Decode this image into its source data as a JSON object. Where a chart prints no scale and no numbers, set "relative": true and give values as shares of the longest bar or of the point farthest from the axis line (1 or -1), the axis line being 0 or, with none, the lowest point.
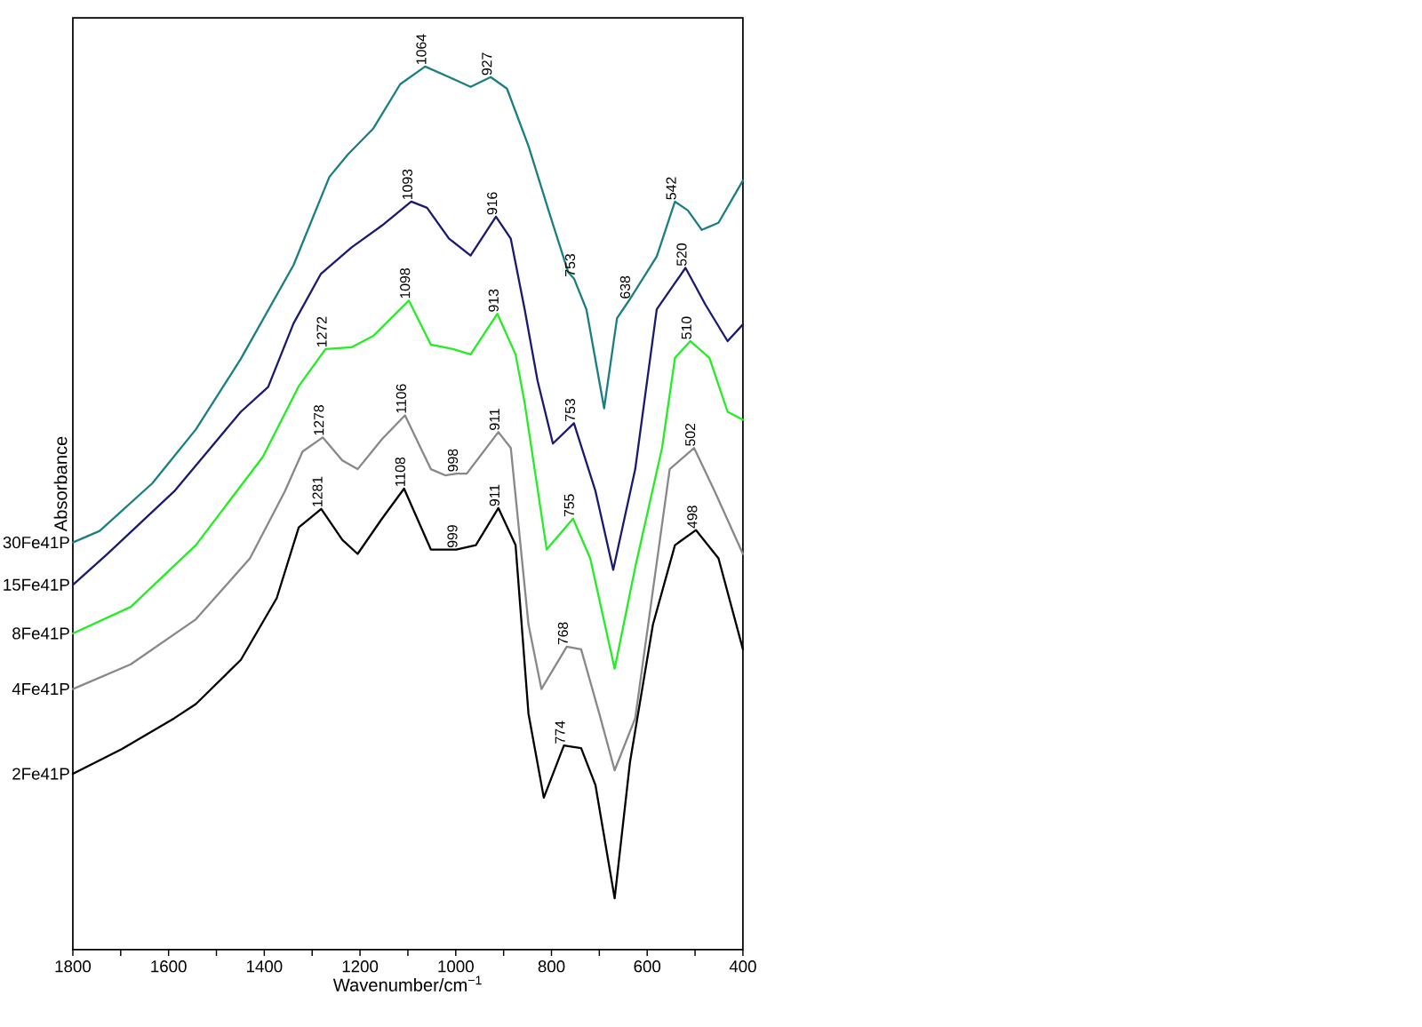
{
  "chart_data": {
    "type": "line",
    "relative": true,
    "xlabel": "Wavenumber/cm$^{−1}$",
    "ylabel": "Absorbance",
    "xlim": [
      1800,
      400
    ],
    "xticks": [
      1800,
      {
        "value": 1700,
        "label": null
      },
      1600,
      {
        "value": 1500,
        "label": null
      },
      1400,
      {
        "value": 1300,
        "label": null
      },
      1200,
      {
        "value": 1100,
        "label": null
      },
      1000,
      {
        "value": 900,
        "label": null
      },
      800,
      {
        "value": 700,
        "label": null
      },
      600,
      {
        "value": 500,
        "label": null
      },
      400
    ],
    "series": [
      {
        "name": "30Fe41P",
        "color": "#1a7f80",
        "x": [
          1800,
          1744,
          1634,
          1543,
          1449,
          1339,
          1264,
          1226,
          1172,
          1116,
          1064,
          1014,
          969,
          927,
          893,
          848,
          802,
          765,
          753,
          727,
          690,
          663,
          638,
          580,
          542,
          515,
          486,
          451,
          400
        ],
        "values": [
          0.461,
          0.474,
          0.528,
          0.589,
          0.669,
          0.775,
          0.875,
          0.9,
          0.93,
          0.98,
          1.0,
          0.988,
          0.977,
          0.988,
          0.975,
          0.91,
          0.83,
          0.767,
          0.76,
          0.725,
          0.613,
          0.715,
          0.735,
          0.785,
          0.847,
          0.837,
          0.815,
          0.823,
          0.871
        ]
      },
      {
        "name": "15Fe41P",
        "color": "#1a1a6e",
        "x": [
          1800,
          1728,
          1588,
          1449,
          1392,
          1339,
          1282,
          1218,
          1154,
          1093,
          1060,
          1014,
          969,
          916,
          885,
          856,
          829,
          797,
          753,
          708,
          671,
          625,
          580,
          520,
          478,
          432,
          400
        ],
        "values": [
          0.413,
          0.448,
          0.519,
          0.609,
          0.637,
          0.709,
          0.765,
          0.795,
          0.82,
          0.847,
          0.84,
          0.805,
          0.786,
          0.83,
          0.805,
          0.725,
          0.644,
          0.573,
          0.596,
          0.519,
          0.43,
          0.544,
          0.725,
          0.772,
          0.73,
          0.689,
          0.708
        ]
      },
      {
        "name": "8Fe41P",
        "color": "#22ee22",
        "x": [
          1800,
          1679,
          1543,
          1403,
          1328,
          1272,
          1218,
          1172,
          1098,
          1052,
          1006,
          969,
          913,
          875,
          856,
          810,
          755,
          719,
          668,
          625,
          569,
          542,
          510,
          470,
          432,
          400
        ],
        "values": [
          0.358,
          0.388,
          0.458,
          0.558,
          0.638,
          0.68,
          0.682,
          0.695,
          0.735,
          0.685,
          0.68,
          0.674,
          0.72,
          0.674,
          0.619,
          0.453,
          0.488,
          0.443,
          0.318,
          0.433,
          0.568,
          0.67,
          0.689,
          0.67,
          0.609,
          0.6
        ]
      },
      {
        "name": "4Fe41P",
        "color": "#888888",
        "x": [
          1800,
          1679,
          1543,
          1430,
          1357,
          1320,
          1278,
          1237,
          1205,
          1154,
          1106,
          1052,
          1022,
          998,
          977,
          911,
          885,
          848,
          821,
          768,
          738,
          700,
          668,
          625,
          598,
          553,
          502,
          459,
          400
        ],
        "values": [
          0.295,
          0.323,
          0.374,
          0.443,
          0.519,
          0.564,
          0.58,
          0.554,
          0.544,
          0.578,
          0.605,
          0.544,
          0.537,
          0.539,
          0.539,
          0.586,
          0.568,
          0.368,
          0.295,
          0.343,
          0.34,
          0.267,
          0.203,
          0.262,
          0.368,
          0.544,
          0.568,
          0.519,
          0.448
        ]
      },
      {
        "name": "2Fe41P",
        "color": "#000000",
        "x": [
          1800,
          1698,
          1588,
          1543,
          1449,
          1374,
          1328,
          1281,
          1237,
          1205,
          1154,
          1108,
          1052,
          999,
          958,
          911,
          875,
          848,
          816,
          774,
          738,
          708,
          668,
          636,
          588,
          542,
          498,
          451,
          400
        ],
        "values": [
          0.199,
          0.227,
          0.262,
          0.278,
          0.328,
          0.398,
          0.478,
          0.499,
          0.464,
          0.448,
          0.488,
          0.522,
          0.453,
          0.453,
          0.458,
          0.5,
          0.458,
          0.267,
          0.172,
          0.231,
          0.228,
          0.186,
          0.058,
          0.212,
          0.368,
          0.458,
          0.475,
          0.443,
          0.34
        ]
      }
    ],
    "annotations": [
      {
        "text": "1064",
        "x": 1064,
        "y": 1.0
      },
      {
        "text": "927",
        "x": 927,
        "y": 0.988
      },
      {
        "text": "753",
        "x": 753,
        "y": 0.76
      },
      {
        "text": "638",
        "x": 638,
        "y": 0.735
      },
      {
        "text": "542",
        "x": 542,
        "y": 0.847
      },
      {
        "text": "1093",
        "x": 1093,
        "y": 0.847
      },
      {
        "text": "916",
        "x": 916,
        "y": 0.83
      },
      {
        "text": "753",
        "x": 753,
        "y": 0.596
      },
      {
        "text": "520",
        "x": 520,
        "y": 0.772
      },
      {
        "text": "1272",
        "x": 1272,
        "y": 0.68
      },
      {
        "text": "1098",
        "x": 1098,
        "y": 0.735
      },
      {
        "text": "913",
        "x": 913,
        "y": 0.72
      },
      {
        "text": "755",
        "x": 755,
        "y": 0.488
      },
      {
        "text": "510",
        "x": 510,
        "y": 0.689
      },
      {
        "text": "1278",
        "x": 1278,
        "y": 0.58
      },
      {
        "text": "1106",
        "x": 1106,
        "y": 0.605
      },
      {
        "text": "998",
        "x": 998,
        "y": 0.539
      },
      {
        "text": "911",
        "x": 911,
        "y": 0.586
      },
      {
        "text": "768",
        "x": 768,
        "y": 0.343
      },
      {
        "text": "502",
        "x": 502,
        "y": 0.568
      },
      {
        "text": "1281",
        "x": 1281,
        "y": 0.499
      },
      {
        "text": "1108",
        "x": 1108,
        "y": 0.522
      },
      {
        "text": "999",
        "x": 999,
        "y": 0.453
      },
      {
        "text": "911",
        "x": 911,
        "y": 0.5
      },
      {
        "text": "774",
        "x": 774,
        "y": 0.231
      },
      {
        "text": "498",
        "x": 498,
        "y": 0.475
      }
    ]
  }
}
